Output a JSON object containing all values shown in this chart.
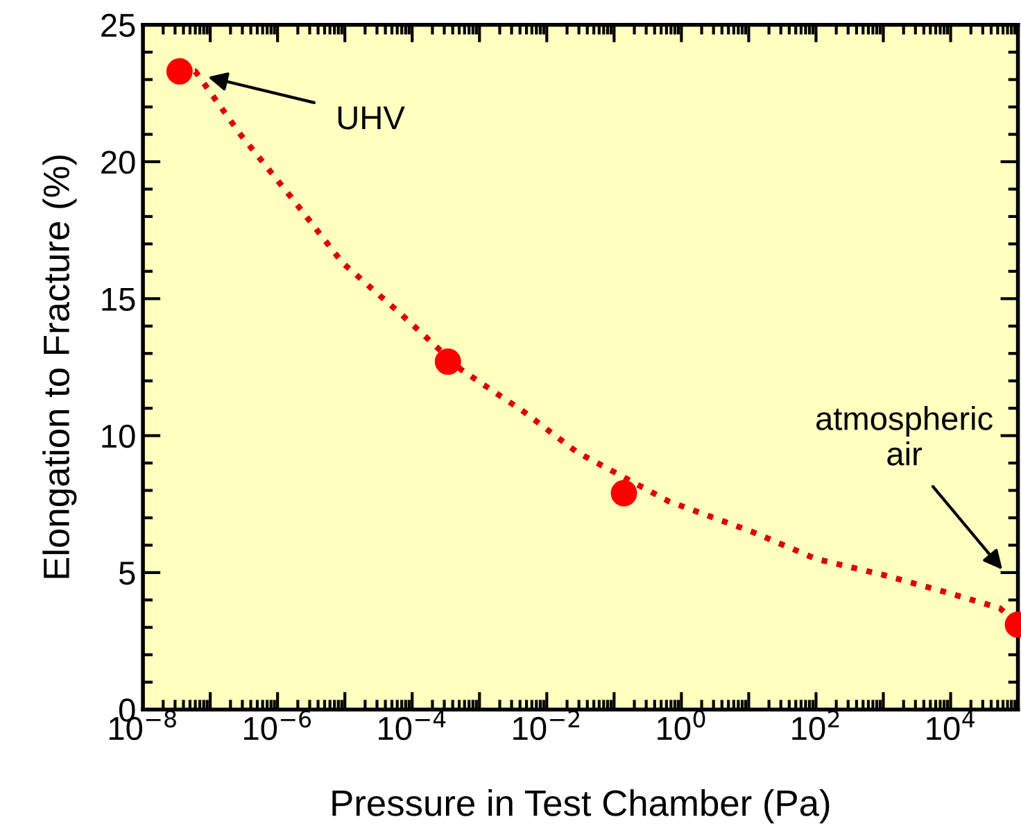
{
  "chart_data": {
    "type": "scatter",
    "xlabel": "Pressure in Test Chamber (Pa)",
    "ylabel": "Elongation to Fracture (%)",
    "log": "x",
    "xlim": [
      1e-08,
      100000.0
    ],
    "ylim": [
      0,
      25
    ],
    "xticks": [
      {
        "value": 1e-08,
        "label": "10$^{−8}$"
      },
      {
        "value": 1e-07,
        "label": null
      },
      {
        "value": 1e-06,
        "label": "10$^{−6}$"
      },
      {
        "value": 1e-05,
        "label": null
      },
      {
        "value": 0.0001,
        "label": "10$^{−4}$"
      },
      {
        "value": 0.001,
        "label": null
      },
      {
        "value": 0.01,
        "label": "10$^{−2}$"
      },
      {
        "value": 0.1,
        "label": null
      },
      {
        "value": 1,
        "label": "10$^{0}$"
      },
      {
        "value": 10,
        "label": null
      },
      {
        "value": 100,
        "label": "10$^{2}$"
      },
      {
        "value": 1000,
        "label": null
      },
      {
        "value": 10000,
        "label": "10$^{4}$"
      }
    ],
    "yticks": [
      0,
      5,
      10,
      15,
      20,
      25
    ],
    "grid": false,
    "legend": false,
    "series": [
      {
        "type": "line",
        "color": "#dd0000",
        "line_style": "dotted",
        "marker": "none",
        "x": [
          3.5e-08,
          6e-08,
          2.8e-07,
          1.6e-06,
          9.3e-06,
          7.1e-05,
          0.00054,
          0.0044,
          0.028,
          0.65,
          11,
          100,
          1050,
          8100,
          54000,
          100000.0
        ],
        "values": [
          23.3,
          23.3,
          21.0,
          18.7,
          16.3,
          14.4,
          12.4,
          10.9,
          9.4,
          7.6,
          6.5,
          5.5,
          4.9,
          4.3,
          3.7,
          3.1
        ]
      },
      {
        "color": "#ff0000",
        "marker": "circle",
        "x": [
          3.5e-08,
          0.00034,
          0.14,
          100000.0
        ],
        "values": [
          23.3,
          12.7,
          7.9,
          3.1
        ]
      }
    ],
    "annotations": [
      "UHV",
      "atmospheric\nair"
    ]
  }
}
